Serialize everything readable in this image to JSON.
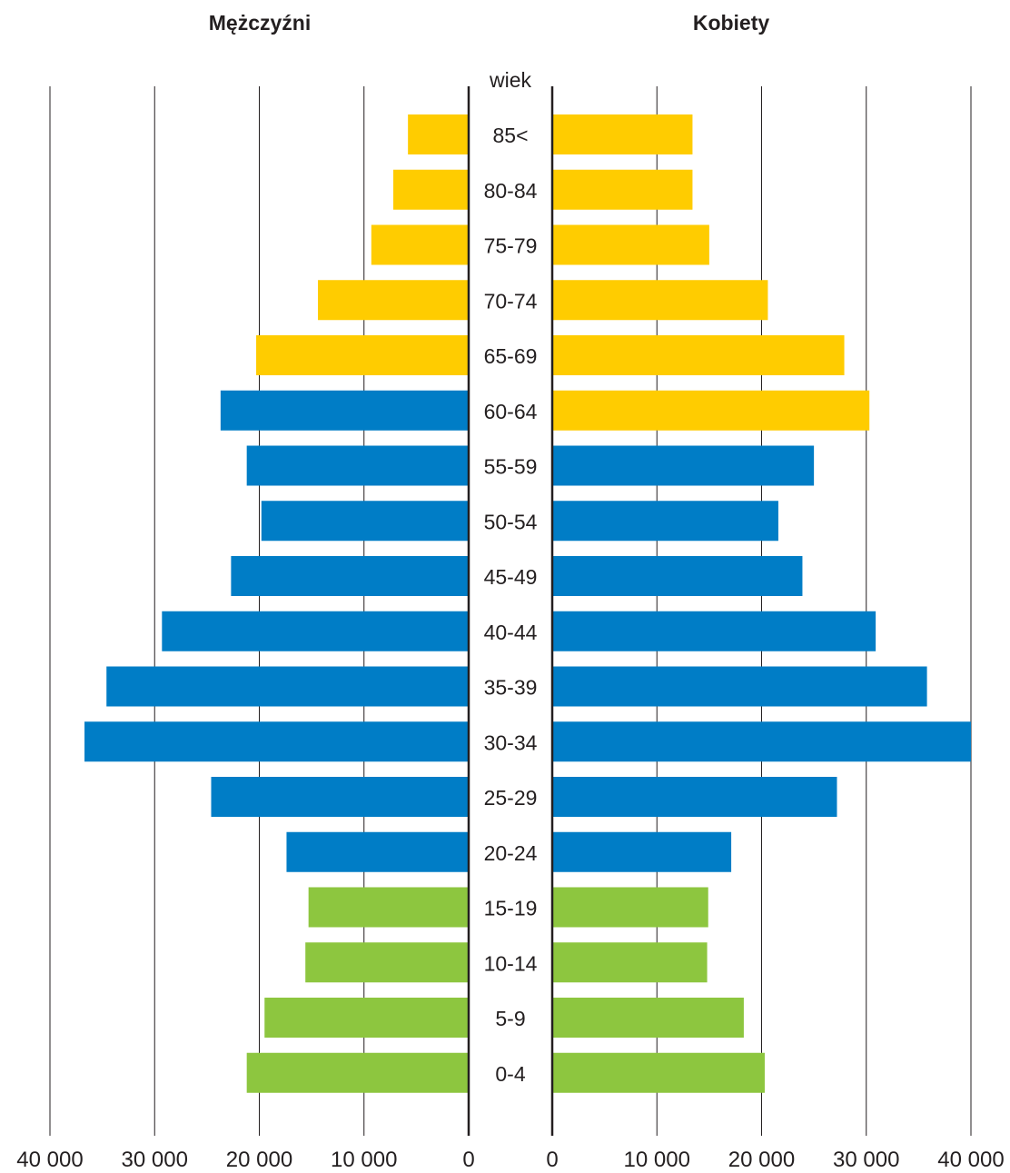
{
  "chart_data": {
    "type": "bar",
    "subtype": "population-pyramid",
    "titles": {
      "left": "Mężczyźni",
      "right": "Kobiety"
    },
    "center_label": "wiek",
    "categories": [
      "85<",
      "80-84",
      "75-79",
      "70-74",
      "65-69",
      "60-64",
      "55-59",
      "50-54",
      "45-49",
      "40-44",
      "35-39",
      "30-34",
      "25-29",
      "20-24",
      "15-19",
      "10-14",
      "5-9",
      "0-4"
    ],
    "series": [
      {
        "name": "Mężczyźni",
        "values": [
          5800,
          7200,
          9300,
          14400,
          20300,
          23700,
          21200,
          19800,
          22700,
          29300,
          34600,
          36700,
          24600,
          17400,
          15300,
          15600,
          19500,
          21200
        ]
      },
      {
        "name": "Kobiety",
        "values": [
          13400,
          13400,
          15000,
          20600,
          27900,
          30300,
          25000,
          21600,
          23900,
          30900,
          35800,
          40000,
          27200,
          17100,
          14900,
          14800,
          18300,
          20300
        ]
      }
    ],
    "group_colors": {
      "senior": "#ffcc00",
      "working": "#007dc6",
      "young": "#8dc63f"
    },
    "male_groups": [
      "senior",
      "senior",
      "senior",
      "senior",
      "senior",
      "working",
      "working",
      "working",
      "working",
      "working",
      "working",
      "working",
      "working",
      "working",
      "young",
      "young",
      "young",
      "young"
    ],
    "female_groups": [
      "senior",
      "senior",
      "senior",
      "senior",
      "senior",
      "senior",
      "working",
      "working",
      "working",
      "working",
      "working",
      "working",
      "working",
      "working",
      "young",
      "young",
      "young",
      "young"
    ],
    "xlim": [
      0,
      40000
    ],
    "x_ticks": [
      0,
      10000,
      20000,
      30000,
      40000
    ],
    "x_tick_labels": [
      "0",
      "10 000",
      "20 000",
      "30 000",
      "40 000"
    ],
    "grid": true
  }
}
